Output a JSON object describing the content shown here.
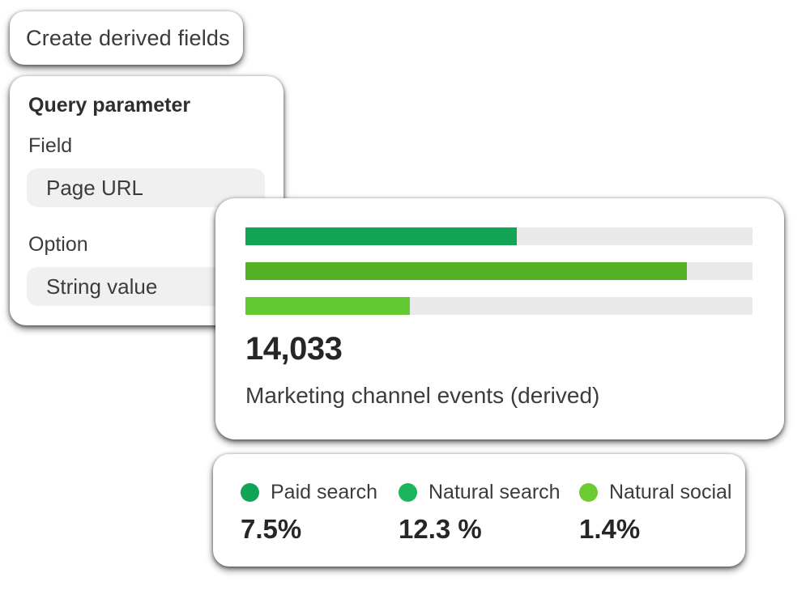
{
  "title_card": {
    "label": "Create derived fields"
  },
  "query_card": {
    "heading": "Query parameter",
    "field_label": "Field",
    "field_value": "Page URL",
    "option_label": "Option",
    "option_value": "String value"
  },
  "chart_card": {
    "metric_value": "14,033",
    "metric_label": "Marketing channel events (derived)",
    "track_color": "#E9E9E9",
    "bars": [
      {
        "name": "Paid search",
        "fill_width": "53.5%",
        "color": "#12A455"
      },
      {
        "name": "Natural search",
        "fill_width": "87%",
        "color": "#55B125"
      },
      {
        "name": "Natural social",
        "fill_width": "32.5%",
        "color": "#63C933"
      }
    ]
  },
  "legend_card": {
    "items": [
      {
        "label": "Paid search",
        "percent": "7.5%",
        "color": "#12A455"
      },
      {
        "label": "Natural search",
        "percent": "12.3 %",
        "color": "#1CB55E"
      },
      {
        "label": "Natural social",
        "percent": "1.4%",
        "color": "#6CCB33"
      }
    ]
  },
  "chart_data": {
    "type": "bar",
    "orientation": "horizontal",
    "title": "Marketing channel events (derived)",
    "total_events": "14,033",
    "categories": [
      "Paid search",
      "Natural search",
      "Natural social"
    ],
    "values_percent": [
      7.5,
      12.3,
      1.4
    ],
    "bar_fill_fraction_of_track": [
      0.535,
      0.87,
      0.325
    ],
    "bar_colors": [
      "#12A455",
      "#55B125",
      "#63C933"
    ],
    "legend_colors": [
      "#12A455",
      "#1CB55E",
      "#6CCB33"
    ],
    "grid": false,
    "legend_position": "bottom"
  }
}
